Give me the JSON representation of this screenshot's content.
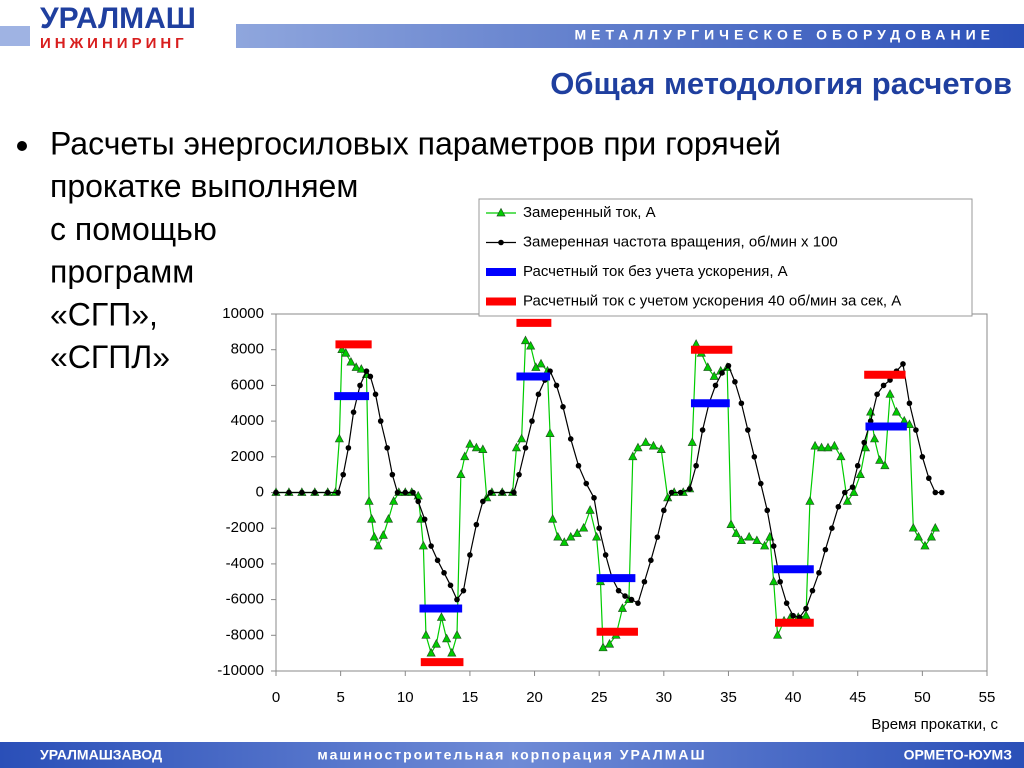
{
  "header": {
    "logo_top": "УРАЛМАШ",
    "logo_bottom": "ИНЖИНИРИНГ",
    "banner": "МЕТАЛЛУРГИЧЕСКОЕ ОБОРУДОВАНИЕ"
  },
  "title": "Общая методология расчетов",
  "bullet": [
    "Расчеты энергосиловых параметров при горячей",
    "прокатке выполняем",
    "с помощью",
    "программ",
    "«СГП»,",
    "«СГПЛ»"
  ],
  "footer": {
    "left": "УРАЛМАШЗАВОД",
    "center": "машиностроительная корпорация УРАЛМАШ",
    "right": "ОРМЕТО-ЮУМЗ"
  },
  "chart_data": {
    "type": "line",
    "x_label": "Время прокатки, с",
    "xlim": [
      0,
      55
    ],
    "xticks": [
      0,
      5,
      10,
      15,
      20,
      25,
      30,
      35,
      40,
      45,
      50,
      55
    ],
    "ylim": [
      -10000,
      10000
    ],
    "yticks": [
      -10000,
      -8000,
      -6000,
      -4000,
      -2000,
      0,
      2000,
      4000,
      6000,
      8000,
      10000
    ],
    "grid": false,
    "series": [
      {
        "name": "Замеренный ток, А",
        "color": "#00cc00",
        "marker": "triangle",
        "line_width": 1.2,
        "x": [
          0,
          1,
          2,
          3,
          4,
          4.6,
          4.9,
          5.1,
          5.4,
          5.8,
          6.2,
          6.6,
          7.0,
          7.2,
          7.4,
          7.6,
          7.9,
          8.3,
          8.7,
          9.1,
          9.5,
          10,
          10.5,
          11,
          11.2,
          11.4,
          11.6,
          12,
          12.4,
          12.8,
          13.2,
          13.6,
          14,
          14.3,
          14.6,
          15,
          15.5,
          16,
          16.3,
          16.7,
          17.5,
          18.3,
          18.6,
          19,
          19.3,
          19.7,
          20.1,
          20.5,
          21,
          21.2,
          21.4,
          21.8,
          22.3,
          22.8,
          23.3,
          23.8,
          24.3,
          24.8,
          25.1,
          25.3,
          25.8,
          26.3,
          26.8,
          27.3,
          27.6,
          28,
          28.6,
          29.2,
          29.8,
          30.3,
          30.8,
          31.5,
          32,
          32.2,
          32.5,
          32.9,
          33.4,
          33.9,
          34.4,
          34.9,
          35.2,
          35.6,
          36,
          36.6,
          37.2,
          37.8,
          38.2,
          38.5,
          38.8,
          39.3,
          39.8,
          40.4,
          41,
          41.3,
          41.7,
          42.2,
          42.7,
          43.2,
          43.7,
          44.2,
          44.7,
          45.2,
          45.6,
          46,
          46.3,
          46.7,
          47.1,
          47.5,
          48,
          48.6,
          49,
          49.3,
          49.7,
          50.2,
          50.7,
          51
        ],
        "values": [
          0,
          0,
          0,
          0,
          0,
          0,
          3000,
          8000,
          7800,
          7300,
          7000,
          6900,
          6600,
          -500,
          -1500,
          -2500,
          -3000,
          -2400,
          -1500,
          -500,
          0,
          0,
          0,
          -200,
          -1500,
          -3000,
          -8000,
          -9000,
          -8500,
          -7000,
          -8200,
          -9000,
          -8000,
          1000,
          2000,
          2700,
          2500,
          2400,
          -300,
          0,
          0,
          0,
          2500,
          3000,
          8500,
          8200,
          7000,
          7200,
          6800,
          3300,
          -1500,
          -2500,
          -2800,
          -2500,
          -2300,
          -2000,
          -1000,
          -2500,
          -5000,
          -8700,
          -8500,
          -8000,
          -6500,
          -6000,
          2000,
          2500,
          2800,
          2600,
          2400,
          -300,
          0,
          0,
          200,
          2800,
          8300,
          7800,
          7000,
          6500,
          6800,
          7000,
          -1800,
          -2300,
          -2700,
          -2500,
          -2700,
          -3000,
          -2500,
          -5000,
          -8000,
          -7200,
          -7000,
          -7000,
          -6900,
          -500,
          2600,
          2500,
          2500,
          2600,
          2000,
          -500,
          0,
          1000,
          2500,
          4500,
          3000,
          1800,
          1500,
          5500,
          4500,
          4000,
          3800,
          -2000,
          -2500,
          -3000,
          -2500,
          -2000
        ]
      },
      {
        "name": "Замеренная частота вращения, об/мин х 100",
        "color": "#000000",
        "marker": "circle",
        "line_width": 1.2,
        "x": [
          0,
          1,
          2,
          3,
          4,
          4.8,
          5.2,
          5.6,
          6,
          6.5,
          7,
          7.3,
          7.7,
          8.1,
          8.6,
          9,
          9.4,
          10,
          10.6,
          11,
          11.5,
          12,
          12.5,
          13,
          13.5,
          14,
          14.5,
          15,
          15.5,
          16,
          16.6,
          17.5,
          18.4,
          18.8,
          19.3,
          19.8,
          20.3,
          20.8,
          21.2,
          21.7,
          22.2,
          22.8,
          23.4,
          24,
          24.6,
          25,
          25.5,
          26,
          26.5,
          27,
          27.5,
          28,
          28.5,
          29,
          29.5,
          30,
          30.6,
          31.3,
          32,
          32.5,
          33,
          33.5,
          34,
          34.5,
          35,
          35.5,
          36,
          36.5,
          37,
          37.5,
          38,
          38.5,
          39,
          39.5,
          40,
          40.5,
          41,
          41.5,
          42,
          42.5,
          43,
          43.5,
          44,
          44.6,
          45,
          45.5,
          46,
          46.5,
          47,
          47.5,
          48,
          48.5,
          49,
          49.5,
          50,
          50.5,
          51,
          51.5
        ],
        "values": [
          0,
          0,
          0,
          0,
          0,
          0,
          1000,
          2500,
          4500,
          6000,
          6800,
          6500,
          5500,
          4000,
          2500,
          1000,
          0,
          0,
          0,
          -500,
          -1500,
          -3000,
          -3800,
          -4500,
          -5200,
          -6000,
          -5500,
          -3500,
          -1800,
          -500,
          0,
          0,
          0,
          1000,
          2500,
          4000,
          5500,
          6300,
          6800,
          6000,
          4800,
          3000,
          1500,
          500,
          -300,
          -2000,
          -3500,
          -4800,
          -5500,
          -5800,
          -6000,
          -6200,
          -5000,
          -3800,
          -2500,
          -1000,
          0,
          0,
          200,
          1500,
          3500,
          5000,
          6000,
          6700,
          7100,
          6200,
          5000,
          3500,
          2000,
          500,
          -1000,
          -3000,
          -5000,
          -6200,
          -6900,
          -7000,
          -6500,
          -5500,
          -4500,
          -3200,
          -2000,
          -800,
          0,
          300,
          1500,
          2800,
          4000,
          5500,
          6000,
          6300,
          6800,
          7200,
          5000,
          3500,
          2000,
          800,
          0,
          0
        ]
      },
      {
        "name": "Расчетный ток без учета ускорения, А",
        "color": "#0000ff",
        "marker": "none",
        "line_width": 8,
        "x": [
          4.5,
          7.2,
          null,
          11.1,
          14.4,
          null,
          18.6,
          21.2,
          null,
          24.8,
          27.8,
          null,
          32.1,
          35.1,
          null,
          38.5,
          41.6,
          null,
          45.6,
          48.8
        ],
        "values": [
          5400,
          5400,
          null,
          -6500,
          -6500,
          null,
          6500,
          6500,
          null,
          -4800,
          -4800,
          null,
          5000,
          5000,
          null,
          -4300,
          -4300,
          null,
          3700,
          3700
        ]
      },
      {
        "name": "Расчетный ток с учетом ускорения 40 об/мин за сек, А",
        "color": "#ff0000",
        "marker": "none",
        "line_width": 8,
        "x": [
          4.6,
          7.4,
          null,
          11.2,
          14.5,
          null,
          18.6,
          21.3,
          null,
          24.8,
          28,
          null,
          32.1,
          35.3,
          null,
          38.6,
          41.6,
          null,
          45.5,
          48.7
        ],
        "values": [
          8300,
          8300,
          null,
          -9500,
          -9500,
          null,
          9500,
          9500,
          null,
          -7800,
          -7800,
          null,
          8000,
          8000,
          null,
          -7300,
          -7300,
          null,
          6600,
          6600
        ]
      }
    ]
  }
}
